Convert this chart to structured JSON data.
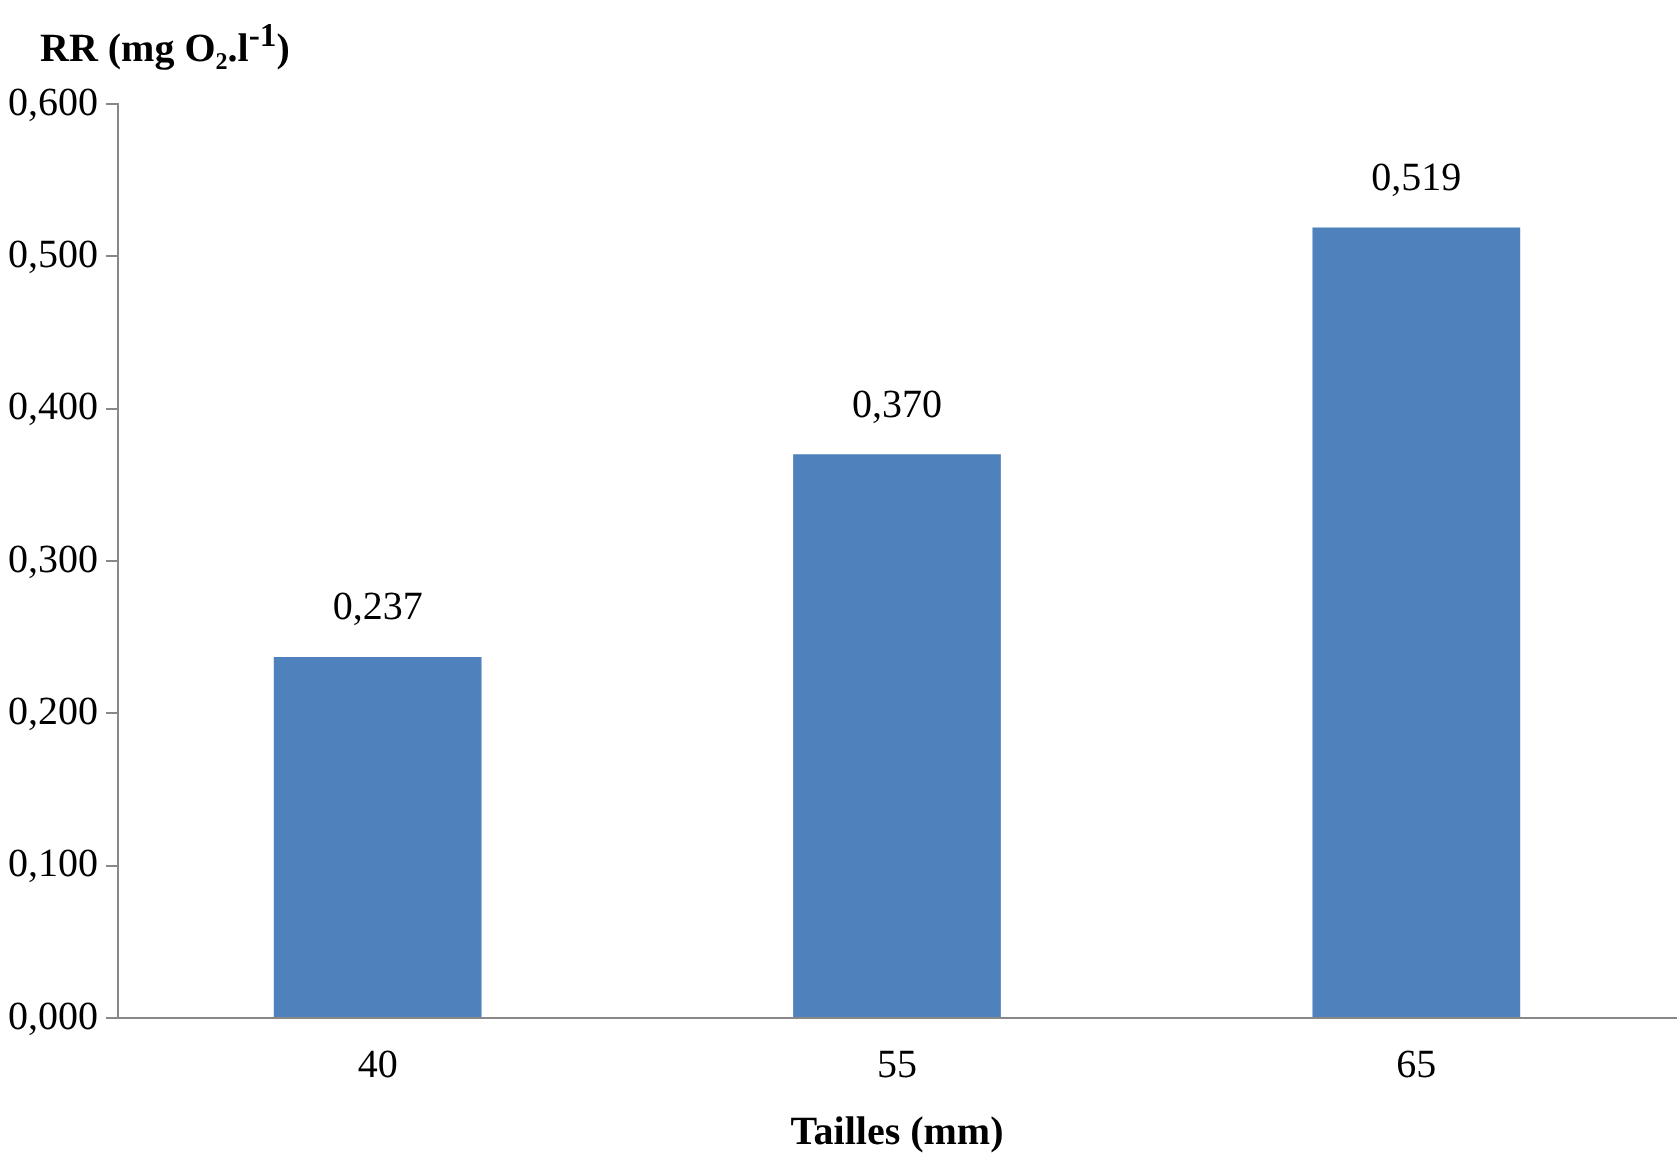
{
  "chart_data": {
    "type": "bar",
    "ylabel": "RR (mg O₂.l$^{-1}$)",
    "xlabel": "Tailles (mm)",
    "categories": [
      "40",
      "55",
      "65"
    ],
    "values": [
      0.237,
      0.37,
      0.519
    ],
    "color": "#4f81bd",
    "value_labels": [
      "0,237",
      "0,370",
      "0,519"
    ],
    "ylim": [
      0,
      0.6
    ],
    "yticks": [
      {
        "value": 0,
        "label": "0,000"
      },
      {
        "value": 0.1,
        "label": "0,100"
      },
      {
        "value": 0.2,
        "label": "0,200"
      },
      {
        "value": 0.3,
        "label": "0,300"
      },
      {
        "value": 0.4,
        "label": "0,400"
      },
      {
        "value": 0.5,
        "label": "0,500"
      },
      {
        "value": 0.6,
        "label": "0,600"
      }
    ],
    "grid": false,
    "legend": false
  }
}
